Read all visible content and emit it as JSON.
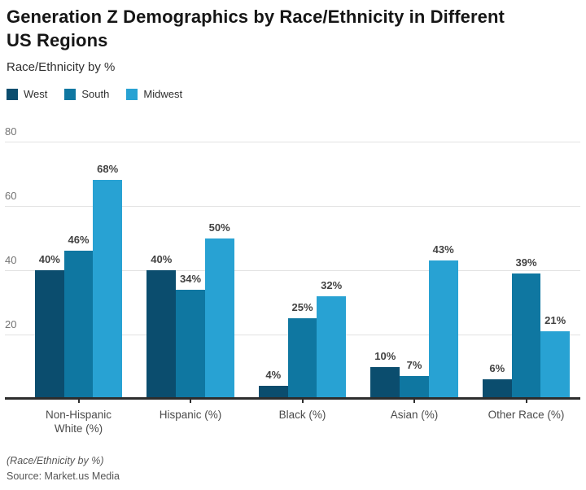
{
  "header": {
    "title": "Generation Z Demographics by Race/Ethnicity in Different US Regions",
    "subtitle": "Race/Ethnicity by %"
  },
  "footer": {
    "footnote": "(Race/Ethnicity by %)",
    "source": "Source: Market.us Media"
  },
  "colors": {
    "west": "#0b4d6e",
    "south": "#0f77a1",
    "midwest": "#28a2d3",
    "gridline": "#e2e2e2",
    "axis": "#2d2d2d"
  },
  "chart_data": {
    "type": "bar",
    "title": "Generation Z Demographics by Race/Ethnicity in Different US Regions",
    "subtitle": "Race/Ethnicity by %",
    "categories": [
      "Non-Hispanic White (%)",
      "Hispanic (%)",
      "Black (%)",
      "Asian (%)",
      "Other Race (%)"
    ],
    "series": [
      {
        "name": "West",
        "color": "#0b4d6e",
        "values": [
          40,
          40,
          4,
          10,
          6
        ]
      },
      {
        "name": "South",
        "color": "#0f77a1",
        "values": [
          46,
          34,
          25,
          7,
          39
        ]
      },
      {
        "name": "Midwest",
        "color": "#28a2d3",
        "values": [
          68,
          50,
          32,
          43,
          21
        ]
      }
    ],
    "value_suffix": "%",
    "data_labels": true,
    "xlabel": "",
    "ylabel": "",
    "yticks": [
      20,
      40,
      60,
      80
    ],
    "ylim": [
      0,
      85
    ],
    "grid": true,
    "legend_position": "top-left"
  }
}
